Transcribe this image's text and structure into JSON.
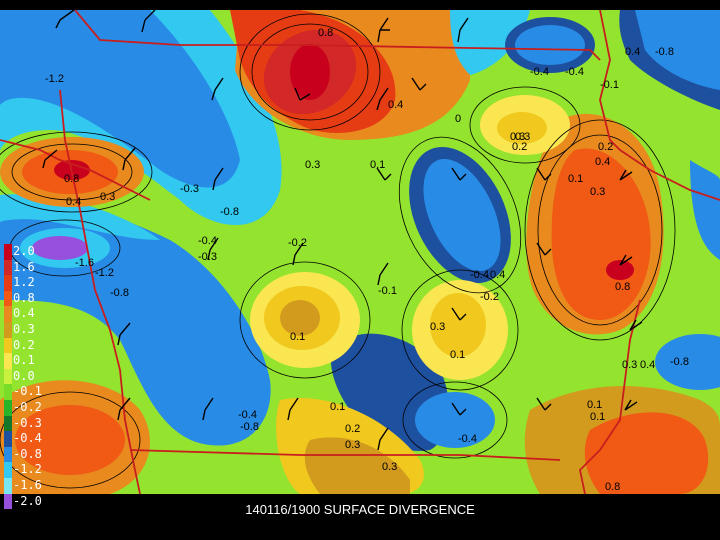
{
  "caption": "140116/1900 SURFACE DIVERGENCE",
  "legend": [
    {
      "label": "2.0",
      "color": "#c8001e"
    },
    {
      "label": "1.6",
      "color": "#d22828"
    },
    {
      "label": "1.2",
      "color": "#e63c14"
    },
    {
      "label": "0.8",
      "color": "#f05a14"
    },
    {
      "label": "0.4",
      "color": "#e88a1e"
    },
    {
      "label": "0.3",
      "color": "#d29b1e"
    },
    {
      "label": "0.2",
      "color": "#f0c81e"
    },
    {
      "label": "0.1",
      "color": "#fae650"
    },
    {
      "label": "0.0",
      "color": "#c8f03c"
    },
    {
      "label": "-0.1",
      "color": "#78dc28"
    },
    {
      "label": "-0.2",
      "color": "#28b428"
    },
    {
      "label": "-0.3",
      "color": "#147828"
    },
    {
      "label": "-0.4",
      "color": "#1e50a0"
    },
    {
      "label": "-0.8",
      "color": "#288ce6"
    },
    {
      "label": "-1.2",
      "color": "#32c8f0"
    },
    {
      "label": "-1.6",
      "color": "#78e6f0"
    },
    {
      "label": "-2.0",
      "color": "#9650dc"
    }
  ],
  "contour_labels": [
    {
      "text": "0.8"
    },
    {
      "text": "0.4"
    },
    {
      "text": "0.3"
    },
    {
      "text": "0.1"
    },
    {
      "text": "0"
    },
    {
      "text": "-1.2"
    },
    {
      "text": "0.8"
    },
    {
      "text": "0.4"
    },
    {
      "text": "0.3"
    },
    {
      "text": "-0.3"
    },
    {
      "text": "-0.8"
    },
    {
      "text": "-1.6"
    },
    {
      "text": "-1.2"
    },
    {
      "text": "-0.8"
    },
    {
      "text": "-0.4"
    },
    {
      "text": "-0.3"
    },
    {
      "text": "-0.2"
    },
    {
      "text": "-0.1"
    },
    {
      "text": "0.3"
    },
    {
      "text": "0.2"
    },
    {
      "text": "0.8"
    },
    {
      "text": "-0.4"
    },
    {
      "text": "-0.2"
    },
    {
      "text": "0.1"
    },
    {
      "text": "0.4"
    },
    {
      "text": "0.3"
    },
    {
      "text": "0.1"
    },
    {
      "text": "-0.4"
    },
    {
      "text": "0.3"
    },
    {
      "text": "-0.8"
    },
    {
      "text": "0.1"
    },
    {
      "text": "0.2"
    },
    {
      "text": "0.3"
    },
    {
      "text": "-0.4"
    },
    {
      "text": "0.8"
    },
    {
      "text": "-0.8"
    },
    {
      "text": "0.4"
    },
    {
      "text": "0.3"
    },
    {
      "text": "0.1"
    },
    {
      "text": "0.1"
    },
    {
      "text": "-0.4"
    },
    {
      "text": "0.3"
    },
    {
      "text": "0.4"
    },
    {
      "text": "-0.4"
    },
    {
      "text": "0.4"
    },
    {
      "text": "0.2"
    },
    {
      "text": "0.1"
    },
    {
      "text": "-0.1"
    },
    {
      "text": "0.3"
    },
    {
      "text": "-0.8"
    }
  ]
}
